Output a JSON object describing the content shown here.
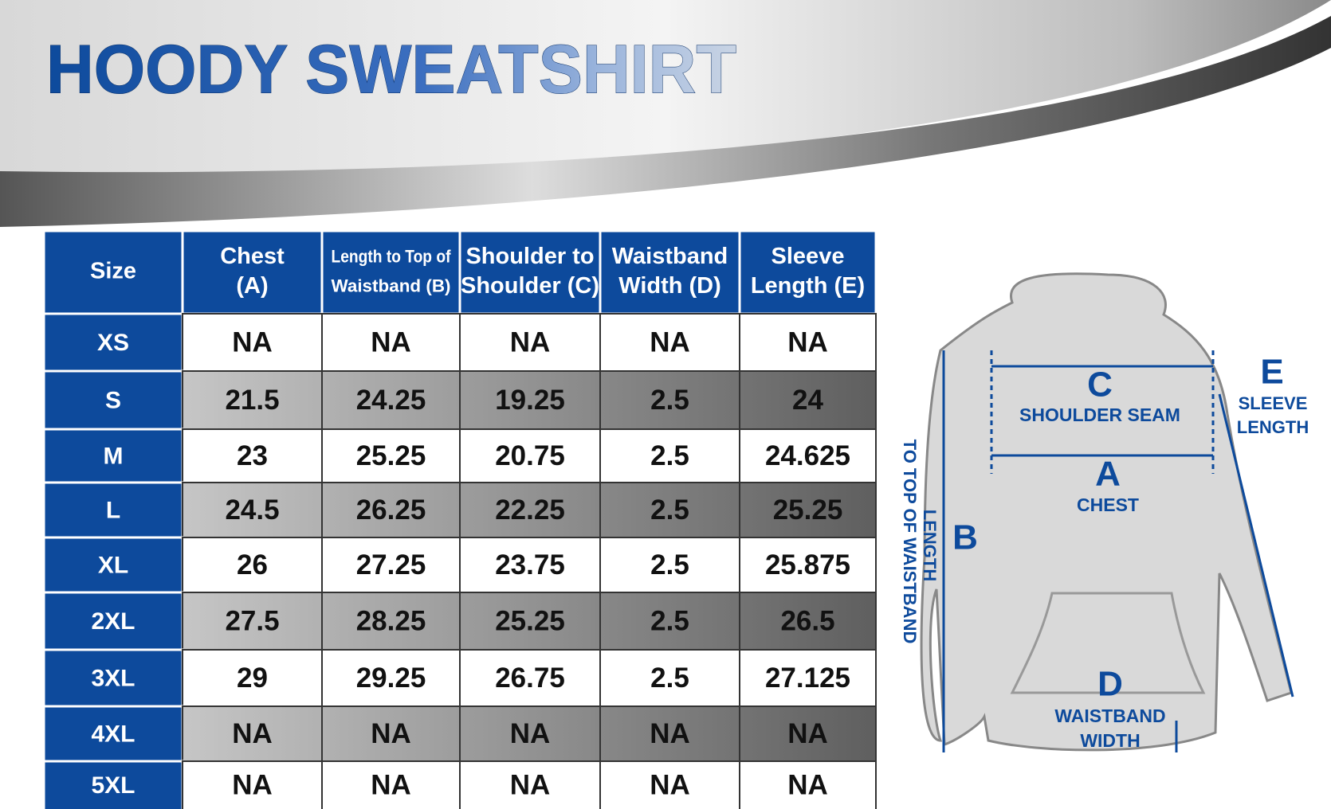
{
  "header": {
    "title": "HOODY SWEATSHIRT"
  },
  "table": {
    "columns": [
      [
        "Size"
      ],
      [
        "Chest",
        "(A)"
      ],
      [
        "Length to Top of",
        "Waistband (B)"
      ],
      [
        "Shoulder to",
        "Shoulder (C)"
      ],
      [
        "Waistband",
        "Width (D)"
      ],
      [
        "Sleeve",
        "Length (E)"
      ]
    ],
    "rows": [
      [
        "XS",
        "NA",
        "NA",
        "NA",
        "NA",
        "NA"
      ],
      [
        "S",
        "21.5",
        "24.25",
        "19.25",
        "2.5",
        "24"
      ],
      [
        "M",
        "23",
        "25.25",
        "20.75",
        "2.5",
        "24.625"
      ],
      [
        "L",
        "24.5",
        "26.25",
        "22.25",
        "2.5",
        "25.25"
      ],
      [
        "XL",
        "26",
        "27.25",
        "23.75",
        "2.5",
        "25.875"
      ],
      [
        "2XL",
        "27.5",
        "28.25",
        "25.25",
        "2.5",
        "26.5"
      ],
      [
        "3XL",
        "29",
        "29.25",
        "26.75",
        "2.5",
        "27.125"
      ],
      [
        "4XL",
        "NA",
        "NA",
        "NA",
        "NA",
        "NA"
      ],
      [
        "5XL",
        "NA",
        "NA",
        "NA",
        "NA",
        "NA"
      ]
    ]
  },
  "diagram": {
    "labels": {
      "c_letter": "C",
      "c_text": "SHOULDER SEAM",
      "a_letter": "A",
      "a_text": "CHEST",
      "b_letter": "B",
      "b_text_1": "LENGTH",
      "b_text_2": "TO TOP OF WAISTBAND",
      "e_letter": "E",
      "e_text_1": "SLEEVE",
      "e_text_2": "LENGTH",
      "d_letter": "D",
      "d_text_1": "WAISTBAND",
      "d_text_2": "WIDTH"
    }
  }
}
